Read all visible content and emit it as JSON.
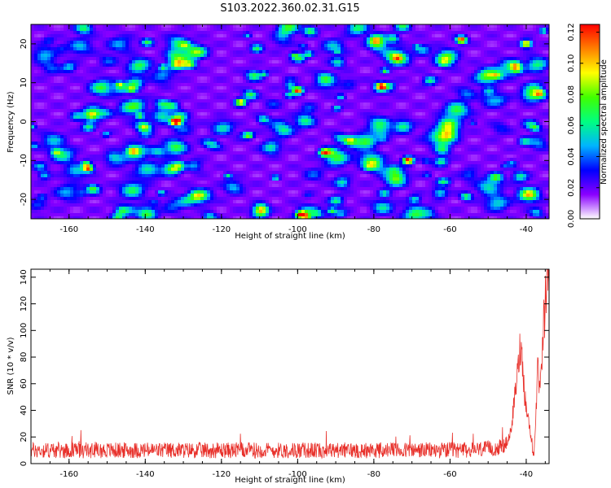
{
  "title": "S103.2022.360.02.31.G15",
  "chart_data": [
    {
      "type": "heatmap",
      "xlabel": "Height of straight line (km)",
      "ylabel": "Frequency (Hz)",
      "xlim": [
        -170,
        -34
      ],
      "ylim": [
        -25,
        25
      ],
      "x_ticks": [
        -160,
        -140,
        -120,
        -100,
        -80,
        -60,
        -40
      ],
      "y_ticks": [
        -20,
        -10,
        0,
        10,
        20
      ],
      "colorbar": {
        "label": "Normalized spectral amplitude",
        "range": [
          0.0,
          0.125
        ],
        "ticks": [
          "0.00",
          "0.02",
          "0.04",
          "0.06",
          "0.08",
          "0.10",
          "0.12"
        ],
        "colors": [
          "#ffffff",
          "#8a00ff",
          "#0000ff",
          "#00b4ff",
          "#00ff80",
          "#40ff00",
          "#ffff00",
          "#ff8000",
          "#ff0000"
        ]
      },
      "hotspots": [
        {
          "x": -132,
          "y": 0,
          "v": 0.12
        },
        {
          "x": -100,
          "y": 8,
          "v": 0.11
        },
        {
          "x": -78,
          "y": 9,
          "v": 0.11
        },
        {
          "x": -71,
          "y": -10,
          "v": 0.12
        },
        {
          "x": -57,
          "y": 21,
          "v": 0.11
        },
        {
          "x": -99,
          "y": -24,
          "v": 0.12
        },
        {
          "x": -155,
          "y": -12,
          "v": 0.1
        },
        {
          "x": -40,
          "y": 20,
          "v": 0.1
        },
        {
          "x": -93,
          "y": -8,
          "v": 0.09
        },
        {
          "x": -115,
          "y": 5,
          "v": 0.09
        }
      ]
    },
    {
      "type": "line",
      "xlabel": "Height of straight line (km)",
      "ylabel": "SNR (10 * v/v)",
      "xlim": [
        -170,
        -34
      ],
      "ylim": [
        0,
        146
      ],
      "x_ticks": [
        -160,
        -140,
        -120,
        -100,
        -80,
        -60,
        -40
      ],
      "y_ticks": [
        0,
        20,
        40,
        60,
        80,
        100,
        120,
        140
      ],
      "color": "#e8302a",
      "series": [
        {
          "x": [
            -170,
            -165,
            -160,
            -155,
            -150,
            -145,
            -140,
            -135,
            -130,
            -125,
            -120,
            -115,
            -110,
            -105,
            -100,
            -95,
            -90,
            -85,
            -80,
            -75,
            -70,
            -65,
            -60,
            -55,
            -50,
            -47,
            -45,
            -44,
            -43,
            -42,
            -41.5,
            -41,
            -40.5,
            -40,
            -39.5,
            -39,
            -38.5,
            -38,
            -37.5,
            -37,
            -36.5,
            -36,
            -35.5,
            -35,
            -34.5,
            -34
          ],
          "y": [
            10,
            10,
            10,
            10,
            10,
            10,
            10,
            10,
            10,
            10,
            10,
            10,
            10,
            10,
            10,
            10,
            10,
            10,
            10,
            10,
            10,
            10,
            10,
            10,
            11,
            12,
            15,
            25,
            50,
            75,
            90,
            78,
            55,
            42,
            35,
            25,
            15,
            8,
            35,
            70,
            55,
            65,
            100,
            120,
            138,
            146
          ]
        }
      ]
    }
  ]
}
